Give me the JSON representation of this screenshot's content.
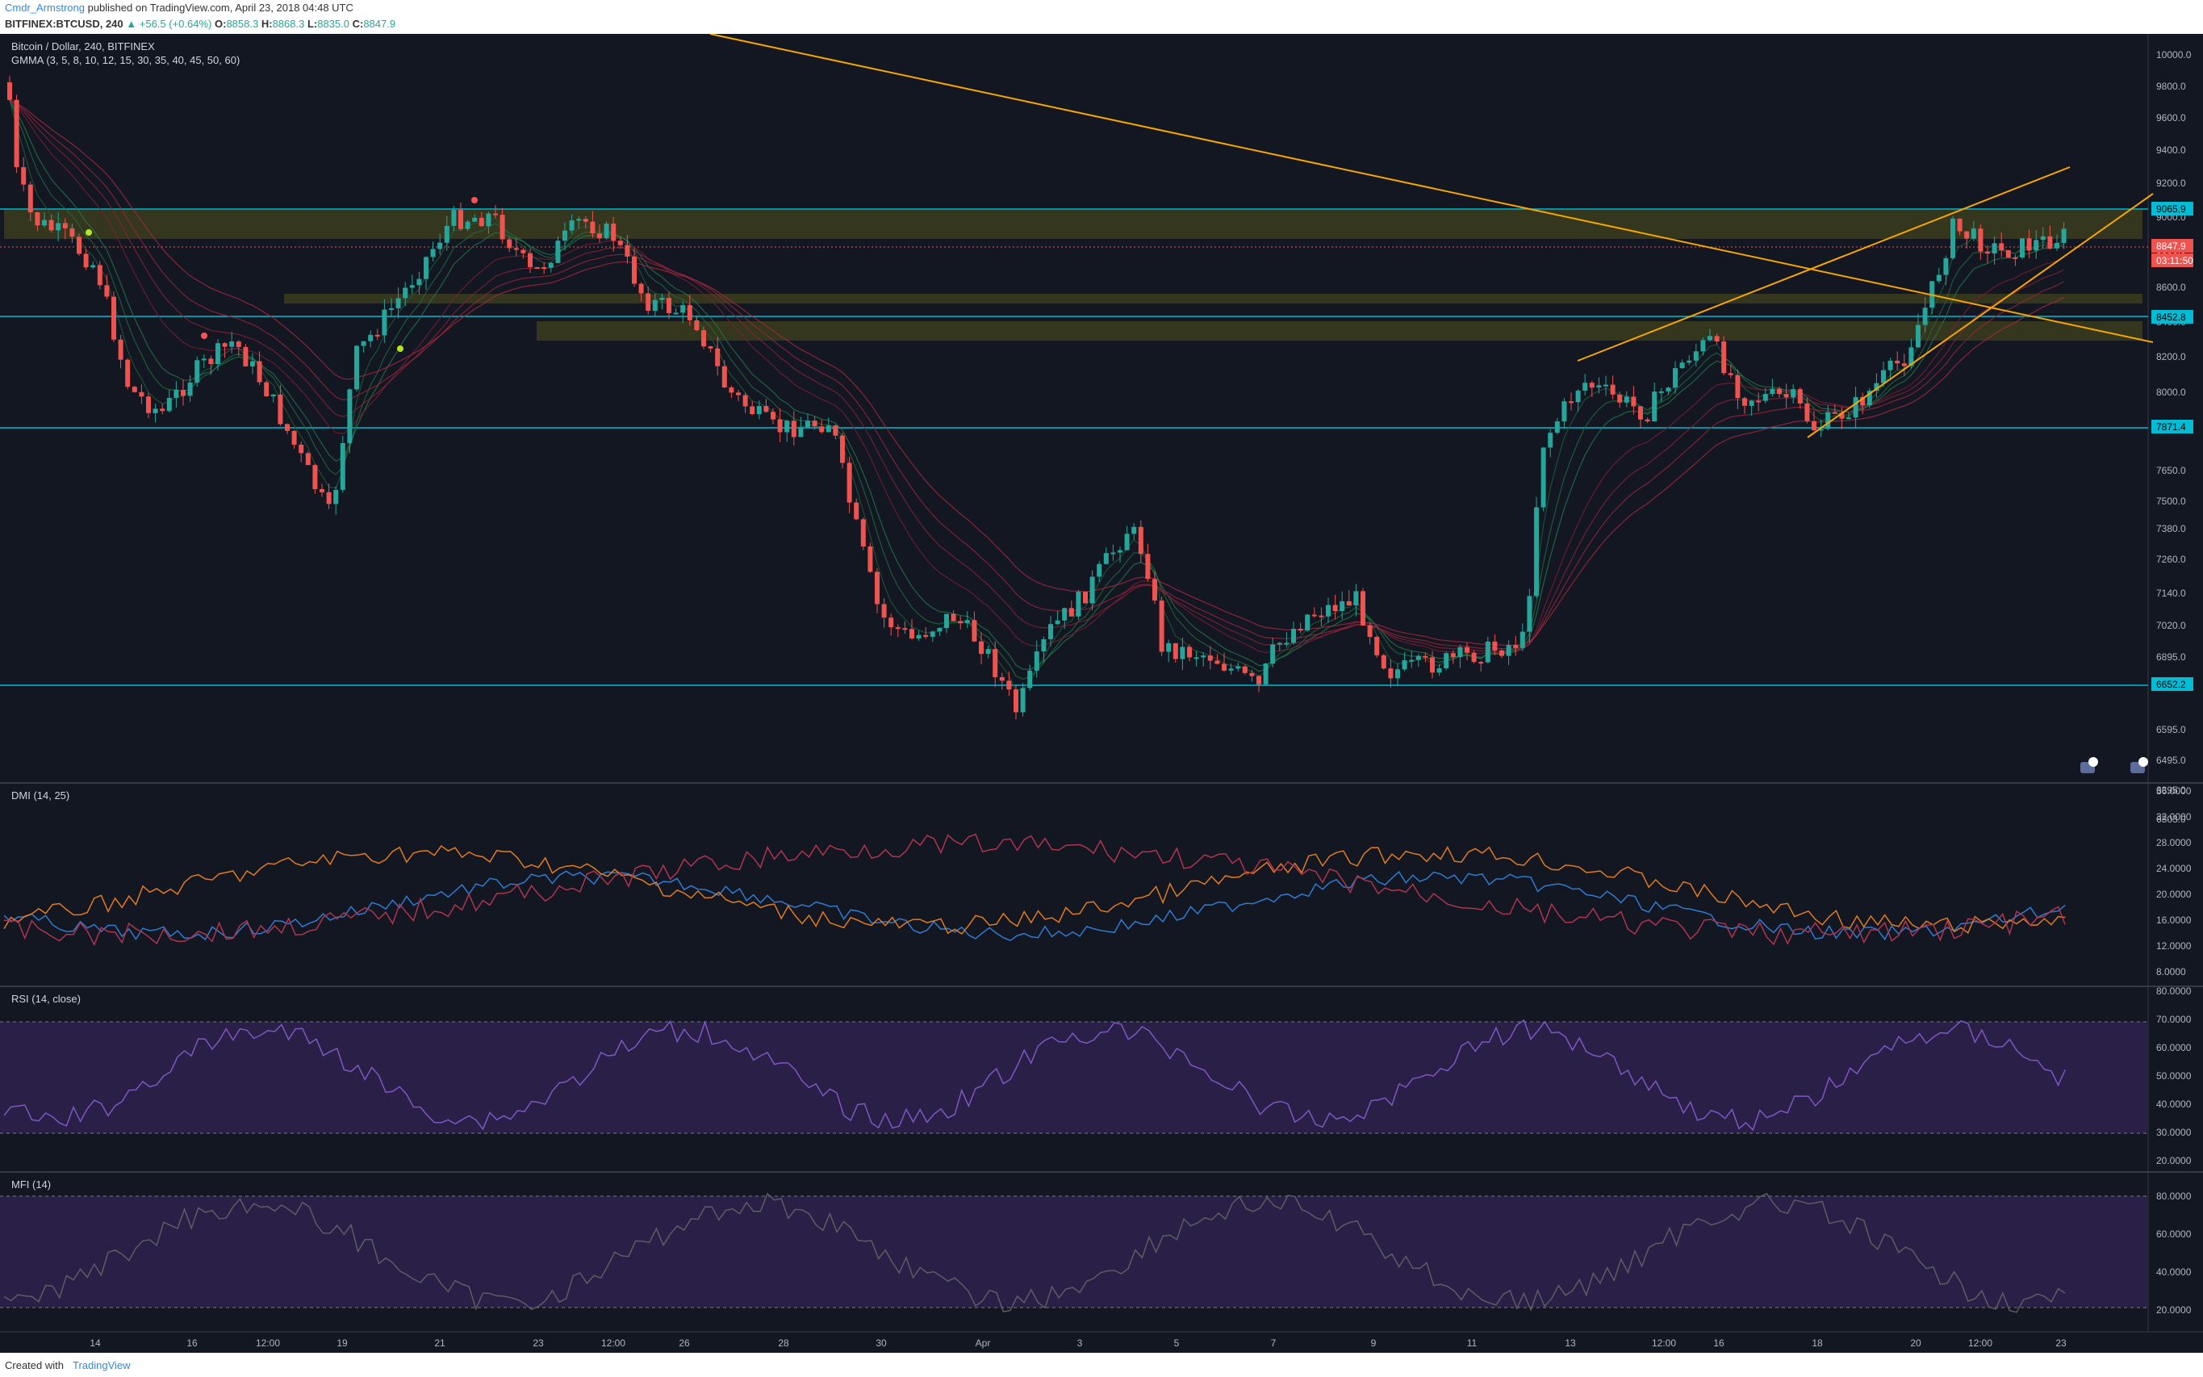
{
  "header": {
    "author": "Cmdr_Armstrong",
    "published": "published on TradingView.com, April 23, 2018 04:48 UTC",
    "symbol": "BITFINEX:BTCUSD, 240",
    "change": "▲ +56.5 (+0.64%)",
    "ohlc": [
      {
        "k": "O:",
        "v": "8858.3"
      },
      {
        "k": "H:",
        "v": "8868.3"
      },
      {
        "k": "L:",
        "v": "8835.0"
      },
      {
        "k": "C:",
        "v": "8847.9"
      }
    ]
  },
  "main_pane": {
    "title": "Bitcoin / Dollar, 240, BITFINEX",
    "indicator": "GMMA (3, 5, 8, 10, 12, 15, 30, 35, 40, 45, 50, 60)",
    "price_scale": [
      "10000.0",
      "9800.0",
      "9600.0",
      "9400.0",
      "9200.0",
      "9000.0",
      "8800.0",
      "8600.0",
      "8400.0",
      "8200.0",
      "8000.0",
      "7800.0",
      "7650.0",
      "7500.0",
      "7380.0",
      "7260.0",
      "7140.0",
      "7020.0",
      "6895.0",
      "6795.0",
      "6595.0",
      "6495.0",
      "6395.0",
      "6303.0"
    ],
    "price_tags": [
      {
        "text": "9065.9",
        "color": "#00bcd4"
      },
      {
        "text": "8847.9",
        "color": "#ef5350"
      },
      {
        "text": "03:11:50",
        "color": "#ef5350"
      },
      {
        "text": "8452.8",
        "color": "#00bcd4"
      },
      {
        "text": "7871.4",
        "color": "#00bcd4"
      },
      {
        "text": "6652.2",
        "color": "#00bcd4"
      }
    ]
  },
  "dmi_pane": {
    "title": "DMI (14, 25)",
    "scale": [
      "36.0000",
      "32.0000",
      "28.0000",
      "24.0000",
      "20.0000",
      "16.0000",
      "12.0000",
      "8.0000"
    ]
  },
  "rsi_pane": {
    "title": "RSI (14, close)",
    "scale": [
      "80.0000",
      "70.0000",
      "60.0000",
      "50.0000",
      "40.0000",
      "30.0000",
      "20.0000"
    ]
  },
  "mfi_pane": {
    "title": "MFI (14)",
    "scale": [
      "80.0000",
      "60.0000",
      "40.0000",
      "20.0000"
    ]
  },
  "time_axis": [
    "14",
    "16",
    "12:00",
    "19",
    "21",
    "23",
    "12:00",
    "26",
    "28",
    "30",
    "Apr",
    "3",
    "5",
    "7",
    "9",
    "11",
    "13",
    "12:00",
    "16",
    "18",
    "20",
    "12:00",
    "23"
  ],
  "footer": {
    "created_with": "Created with",
    "brand": "TradingView"
  },
  "colors": {
    "bg": "#131722",
    "up": "#26a69a",
    "down": "#ef5350",
    "trend": "#f7a600",
    "level": "#00bcd4",
    "zone": "#3b3d1c"
  }
}
